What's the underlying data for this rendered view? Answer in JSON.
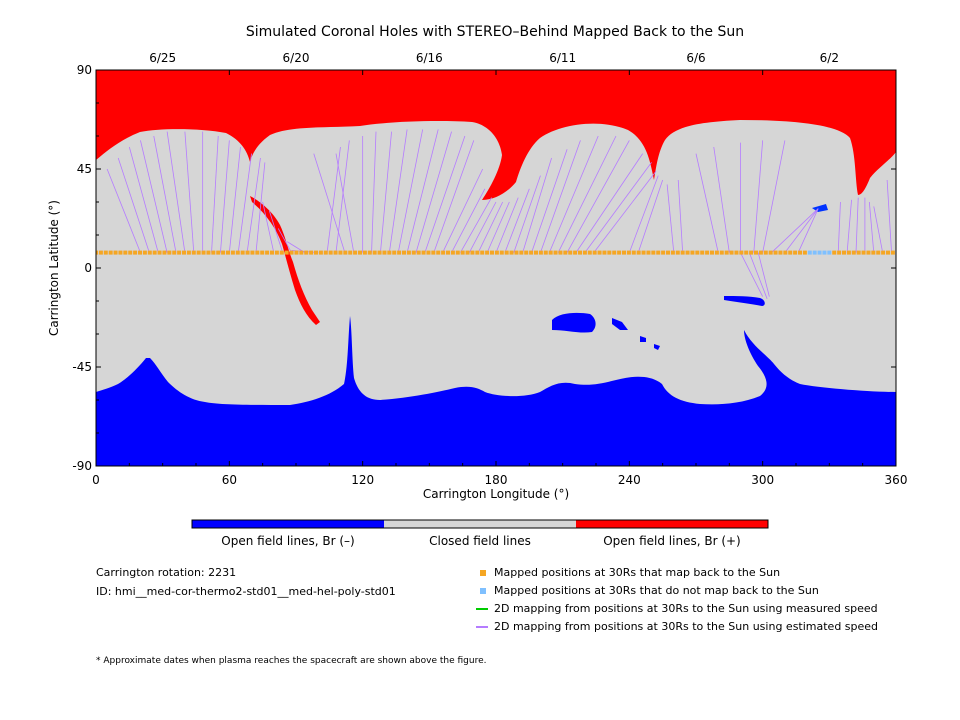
{
  "colors": {
    "open_negative": "#0000ff",
    "closed": "#d6d6d6",
    "open_positive": "#ff0000",
    "mapped_back": "#f5a623",
    "not_mapped": "#7fc0ff",
    "measured_line": "#00cc00",
    "estimated_line": "#b57cff"
  },
  "chart_data": {
    "type": "map",
    "title": "Simulated Coronal Holes with STEREO–Behind Mapped Back to the Sun",
    "xlabel": "Carrington Longitude (°)",
    "ylabel": "Carrington Latitude (°)",
    "xlim": [
      0,
      360
    ],
    "ylim": [
      -90,
      90
    ],
    "x_ticks": [
      0,
      60,
      120,
      180,
      240,
      300,
      360
    ],
    "y_ticks": [
      -90,
      -45,
      0,
      45,
      90
    ],
    "top_axis_dates": [
      {
        "label": "6/25",
        "lon": 30
      },
      {
        "label": "6/20",
        "lon": 90
      },
      {
        "label": "6/16",
        "lon": 150
      },
      {
        "label": "6/11",
        "lon": 210
      },
      {
        "label": "6/6",
        "lon": 270
      },
      {
        "label": "6/2",
        "lon": 330
      }
    ],
    "mapped_positions_latitude": 7,
    "not_mapped_lon_range": [
      320,
      330
    ],
    "colorbar_labels": [
      "Open field lines, Br (–)",
      "Closed field lines",
      "Open field lines, Br (+)"
    ],
    "mapping_lines": [
      {
        "from": [
          20,
          7
        ],
        "to": [
          5,
          45
        ]
      },
      {
        "from": [
          24,
          7
        ],
        "to": [
          10,
          50
        ]
      },
      {
        "from": [
          28,
          7
        ],
        "to": [
          15,
          55
        ]
      },
      {
        "from": [
          32,
          7
        ],
        "to": [
          20,
          58
        ]
      },
      {
        "from": [
          36,
          7
        ],
        "to": [
          26,
          60
        ]
      },
      {
        "from": [
          40,
          7
        ],
        "to": [
          32,
          62
        ]
      },
      {
        "from": [
          44,
          7
        ],
        "to": [
          40,
          62
        ]
      },
      {
        "from": [
          48,
          7
        ],
        "to": [
          48,
          62
        ]
      },
      {
        "from": [
          52,
          7
        ],
        "to": [
          55,
          60
        ]
      },
      {
        "from": [
          56,
          7
        ],
        "to": [
          60,
          58
        ]
      },
      {
        "from": [
          60,
          7
        ],
        "to": [
          65,
          55
        ]
      },
      {
        "from": [
          64,
          7
        ],
        "to": [
          70,
          52
        ]
      },
      {
        "from": [
          68,
          7
        ],
        "to": [
          74,
          50
        ]
      },
      {
        "from": [
          72,
          7
        ],
        "to": [
          76,
          48
        ]
      },
      {
        "from": [
          80,
          7
        ],
        "to": [
          75,
          30
        ]
      },
      {
        "from": [
          84,
          7
        ],
        "to": [
          78,
          26
        ]
      },
      {
        "from": [
          88,
          7
        ],
        "to": [
          82,
          18
        ]
      },
      {
        "from": [
          94,
          7
        ],
        "to": [
          86,
          12
        ]
      },
      {
        "from": [
          100,
          7
        ],
        "to": [
          88,
          8
        ]
      },
      {
        "from": [
          104,
          7
        ],
        "to": [
          110,
          55
        ]
      },
      {
        "from": [
          108,
          7
        ],
        "to": [
          114,
          58
        ]
      },
      {
        "from": [
          112,
          7
        ],
        "to": [
          98,
          52
        ]
      },
      {
        "from": [
          116,
          7
        ],
        "to": [
          108,
          52
        ]
      },
      {
        "from": [
          120,
          7
        ],
        "to": [
          120,
          60
        ]
      },
      {
        "from": [
          124,
          7
        ],
        "to": [
          126,
          62
        ]
      },
      {
        "from": [
          128,
          7
        ],
        "to": [
          133,
          62
        ]
      },
      {
        "from": [
          132,
          7
        ],
        "to": [
          140,
          63
        ]
      },
      {
        "from": [
          136,
          7
        ],
        "to": [
          147,
          63
        ]
      },
      {
        "from": [
          140,
          7
        ],
        "to": [
          154,
          63
        ]
      },
      {
        "from": [
          144,
          7
        ],
        "to": [
          160,
          62
        ]
      },
      {
        "from": [
          148,
          7
        ],
        "to": [
          166,
          60
        ]
      },
      {
        "from": [
          152,
          7
        ],
        "to": [
          170,
          58
        ]
      },
      {
        "from": [
          156,
          7
        ],
        "to": [
          174,
          45
        ]
      },
      {
        "from": [
          160,
          7
        ],
        "to": [
          175,
          36
        ]
      },
      {
        "from": [
          164,
          7
        ],
        "to": [
          178,
          32
        ]
      },
      {
        "from": [
          168,
          7
        ],
        "to": [
          180,
          30
        ]
      },
      {
        "from": [
          172,
          7
        ],
        "to": [
          183,
          30
        ]
      },
      {
        "from": [
          176,
          7
        ],
        "to": [
          186,
          30
        ]
      },
      {
        "from": [
          180,
          7
        ],
        "to": [
          190,
          32
        ]
      },
      {
        "from": [
          184,
          7
        ],
        "to": [
          195,
          36
        ]
      },
      {
        "from": [
          188,
          7
        ],
        "to": [
          200,
          42
        ]
      },
      {
        "from": [
          192,
          7
        ],
        "to": [
          205,
          50
        ]
      },
      {
        "from": [
          196,
          7
        ],
        "to": [
          212,
          54
        ]
      },
      {
        "from": [
          200,
          7
        ],
        "to": [
          218,
          58
        ]
      },
      {
        "from": [
          204,
          7
        ],
        "to": [
          226,
          60
        ]
      },
      {
        "from": [
          208,
          7
        ],
        "to": [
          234,
          60
        ]
      },
      {
        "from": [
          212,
          7
        ],
        "to": [
          240,
          58
        ]
      },
      {
        "from": [
          216,
          7
        ],
        "to": [
          246,
          52
        ]
      },
      {
        "from": [
          220,
          7
        ],
        "to": [
          250,
          48
        ]
      },
      {
        "from": [
          224,
          7
        ],
        "to": [
          252,
          44
        ]
      },
      {
        "from": [
          240,
          7
        ],
        "to": [
          253,
          42
        ]
      },
      {
        "from": [
          244,
          7
        ],
        "to": [
          255,
          40
        ]
      },
      {
        "from": [
          260,
          7
        ],
        "to": [
          257,
          38
        ]
      },
      {
        "from": [
          264,
          7
        ],
        "to": [
          262,
          40
        ]
      },
      {
        "from": [
          280,
          7
        ],
        "to": [
          270,
          52
        ]
      },
      {
        "from": [
          285,
          7
        ],
        "to": [
          278,
          55
        ]
      },
      {
        "from": [
          290,
          7
        ],
        "to": [
          290,
          57
        ]
      },
      {
        "from": [
          296,
          7
        ],
        "to": [
          300,
          58
        ]
      },
      {
        "from": [
          300,
          7
        ],
        "to": [
          310,
          58
        ]
      },
      {
        "from": [
          290,
          7
        ],
        "to": [
          300,
          -13
        ]
      },
      {
        "from": [
          294,
          7
        ],
        "to": [
          302,
          -14
        ]
      },
      {
        "from": [
          298,
          7
        ],
        "to": [
          303,
          -13
        ]
      },
      {
        "from": [
          304,
          7
        ],
        "to": [
          325,
          27
        ]
      },
      {
        "from": [
          310,
          7
        ],
        "to": [
          325,
          27
        ]
      },
      {
        "from": [
          316,
          7
        ],
        "to": [
          325,
          27
        ]
      },
      {
        "from": [
          334,
          7
        ],
        "to": [
          335,
          30
        ]
      },
      {
        "from": [
          338,
          7
        ],
        "to": [
          340,
          31
        ]
      },
      {
        "from": [
          342,
          7
        ],
        "to": [
          343,
          32
        ]
      },
      {
        "from": [
          346,
          7
        ],
        "to": [
          346,
          32
        ]
      },
      {
        "from": [
          350,
          7
        ],
        "to": [
          348,
          30
        ]
      },
      {
        "from": [
          354,
          7
        ],
        "to": [
          350,
          28
        ]
      },
      {
        "from": [
          358,
          7
        ],
        "to": [
          356,
          40
        ]
      }
    ]
  },
  "colorbar": {
    "open_negative": "Open field lines, Br (–)",
    "closed": "Closed field lines",
    "open_positive": "Open field lines, Br (+)"
  },
  "info": {
    "rotation": "Carrington rotation: 2231",
    "id": "ID: hmi__med-cor-thermo2-std01__med-hel-poly-std01"
  },
  "legend": {
    "mapped": "Mapped positions at 30Rs that map back to the Sun",
    "not_mapped": "Mapped positions at 30Rs that do not map back to the Sun",
    "measured": "2D mapping from positions at 30Rs to the Sun using measured speed",
    "estimated": "2D mapping from positions at 30Rs to the Sun using estimated speed"
  },
  "footnote": "* Approximate dates when plasma reaches the spacecraft are shown above the figure."
}
